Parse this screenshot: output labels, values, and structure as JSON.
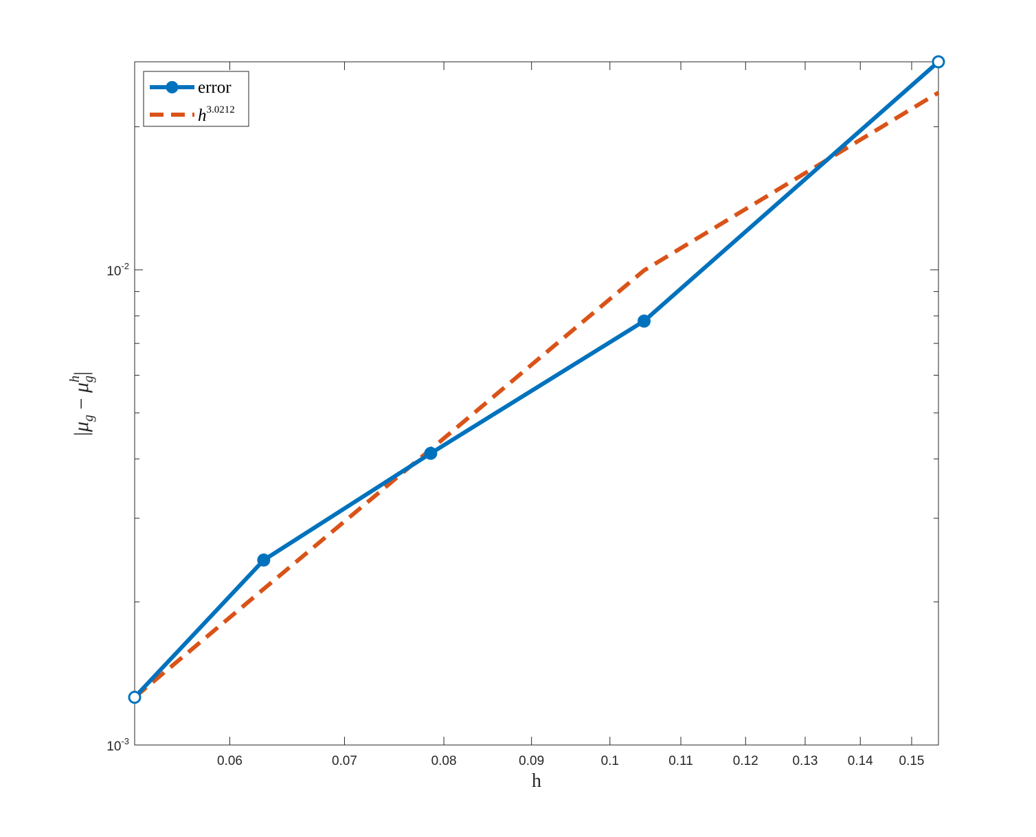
{
  "chart_data": {
    "type": "line",
    "x_scale": "log",
    "y_scale": "log",
    "xlabel": "h",
    "ylabel": "|μg − μgh|",
    "xlim": [
      0.0528,
      0.1555
    ],
    "ylim": [
      0.001,
      0.0274
    ],
    "x_ticks": [
      0.06,
      0.07,
      0.08,
      0.09,
      0.1,
      0.11,
      0.12,
      0.13,
      0.14,
      0.15
    ],
    "x_tick_labels": [
      "0.06",
      "0.07",
      "0.08",
      "0.09",
      "0.1",
      "0.11",
      "0.12",
      "0.13",
      "0.14",
      "0.15"
    ],
    "y_major_ticks": [
      0.001,
      0.01
    ],
    "y_tick_labels": [
      {
        "base": "10",
        "exp": "-3"
      },
      {
        "base": "10",
        "exp": "-2"
      }
    ],
    "grid": false,
    "legend_position": "top-left",
    "series": [
      {
        "name": "error",
        "style": "solid-with-circle-markers",
        "color": "#0072BD",
        "x": [
          0.0528,
          0.0628,
          0.0786,
          0.1047,
          0.1555
        ],
        "y": [
          0.00126,
          0.00245,
          0.00411,
          0.0078,
          0.0274
        ]
      },
      {
        "name": "h^3.0212",
        "name_base": "h",
        "name_exp": "3.0212",
        "style": "dashed",
        "color": "#D95319",
        "x": [
          0.0528,
          0.0628,
          0.0786,
          0.1047,
          0.1555
        ],
        "y": [
          0.00126,
          0.00213,
          0.00419,
          0.00997,
          0.0236
        ]
      }
    ]
  }
}
